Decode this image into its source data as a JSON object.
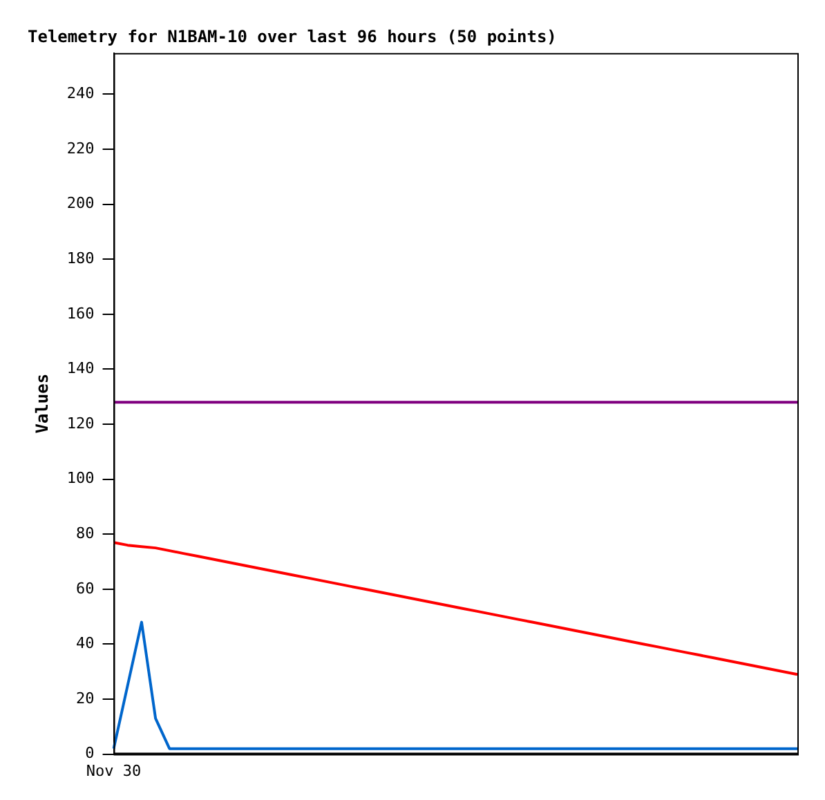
{
  "chart_data": {
    "type": "line",
    "title": "Telemetry for N1BAM-10 over last 96 hours (50 points)",
    "ylabel": "Values",
    "categories": [
      "Nov 30",
      null,
      null,
      null,
      null,
      null,
      null,
      null,
      null,
      null,
      null,
      null,
      null,
      null,
      null,
      null,
      null,
      null,
      null,
      null,
      null,
      null,
      null,
      null,
      null,
      null,
      null,
      null,
      null,
      null,
      null,
      null,
      null,
      null,
      null,
      null,
      null,
      null,
      null,
      null,
      null,
      null,
      null,
      null,
      null,
      null,
      null,
      null,
      null,
      null
    ],
    "series": [
      {
        "color": "#000000",
        "values": [
          0,
          0,
          0,
          0,
          0,
          0,
          0,
          0,
          0,
          0,
          0,
          0,
          0,
          0,
          0,
          0,
          0,
          0,
          0,
          0,
          0,
          0,
          0,
          0,
          0,
          0,
          0,
          0,
          0,
          0,
          0,
          0,
          0,
          0,
          0,
          0,
          0,
          0,
          0,
          0,
          0,
          0,
          0,
          0,
          0,
          0,
          0,
          0,
          0,
          0
        ]
      },
      {
        "color": "#0066cc",
        "values": [
          2,
          25,
          48,
          13,
          2,
          2,
          2,
          2,
          2,
          2,
          2,
          2,
          2,
          2,
          2,
          2,
          2,
          2,
          2,
          2,
          2,
          2,
          2,
          2,
          2,
          2,
          2,
          2,
          2,
          2,
          2,
          2,
          2,
          2,
          2,
          2,
          2,
          2,
          2,
          2,
          2,
          2,
          2,
          2,
          2,
          2,
          2,
          2,
          2,
          2
        ]
      },
      {
        "color": "#ff0000",
        "values": [
          77,
          76,
          75.5,
          75,
          74,
          73,
          72,
          71,
          70,
          69,
          68,
          67,
          66,
          65,
          64,
          63,
          62,
          61,
          60,
          59,
          58,
          57,
          56,
          55,
          54,
          53,
          52,
          51,
          50,
          49,
          48,
          47,
          46,
          45,
          44,
          43,
          42,
          41,
          40,
          39,
          38,
          37,
          36,
          35,
          34,
          33,
          32,
          31,
          30,
          29
        ]
      },
      {
        "color": "#800080",
        "values": [
          128,
          128,
          128,
          128,
          128,
          128,
          128,
          128,
          128,
          128,
          128,
          128,
          128,
          128,
          128,
          128,
          128,
          128,
          128,
          128,
          128,
          128,
          128,
          128,
          128,
          128,
          128,
          128,
          128,
          128,
          128,
          128,
          128,
          128,
          128,
          128,
          128,
          128,
          128,
          128,
          128,
          128,
          128,
          128,
          128,
          128,
          128,
          128,
          128,
          128
        ]
      }
    ],
    "ylim": [
      0,
      255
    ],
    "yticks": [
      0,
      20,
      40,
      60,
      80,
      100,
      120,
      140,
      160,
      180,
      200,
      220,
      240
    ],
    "grid": false,
    "legend": false,
    "marker": "none",
    "line_style": "solid"
  }
}
